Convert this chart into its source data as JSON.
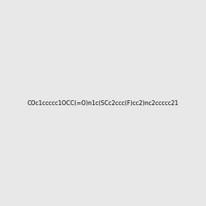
{
  "smiles": "COc1ccccc1OCC(=O)n1c(SCc2ccc(F)cc2)nc2ccccc21",
  "image_size": 300,
  "background_color": "#e8e8e8",
  "bond_color": "#000000",
  "atom_colors": {
    "N": "#0000ff",
    "O": "#ff0000",
    "S": "#cccc00",
    "F": "#ff00ff"
  },
  "title": ""
}
